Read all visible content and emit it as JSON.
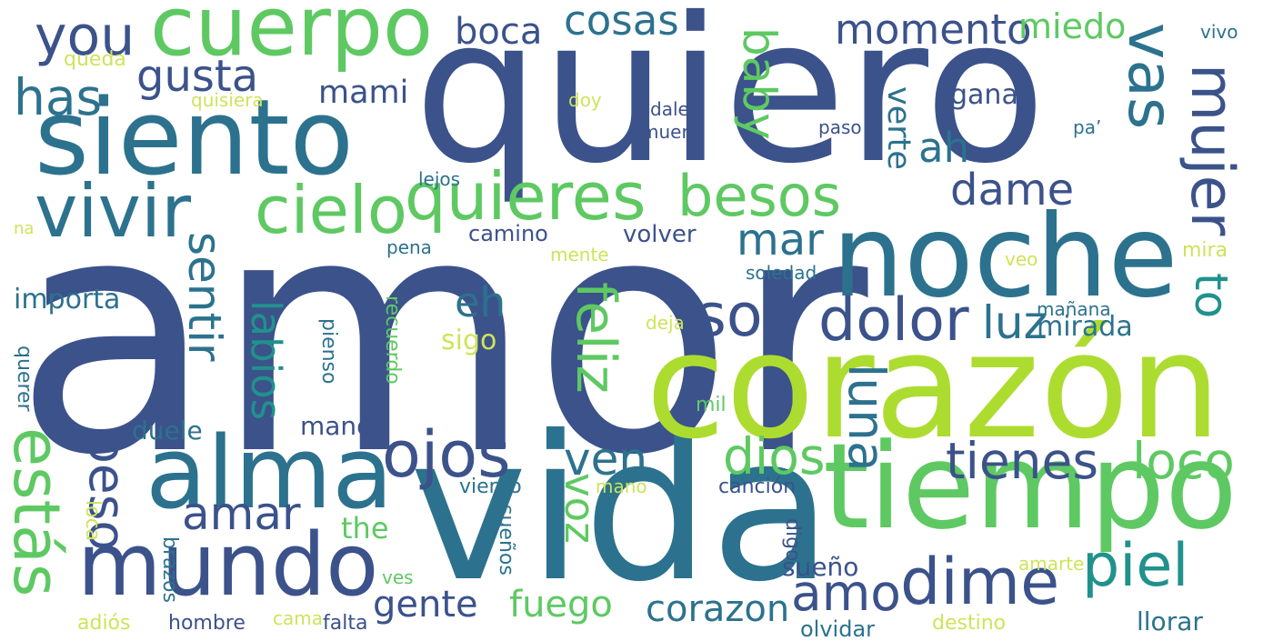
{
  "colors": {
    "background": "#ffffff",
    "palette": [
      "#3b528b",
      "#2c728e",
      "#21918c",
      "#28ae80",
      "#5ec962",
      "#addc30",
      "#cfe35a"
    ]
  },
  "words": [
    {
      "text": "amor",
      "color": "#3b528b"
    },
    {
      "text": "quiero",
      "color": "#3b528b"
    },
    {
      "text": "vida",
      "color": "#2c728e"
    },
    {
      "text": "corazón",
      "color": "#addc30"
    },
    {
      "text": "noche",
      "color": "#2c728e"
    },
    {
      "text": "tiempo",
      "color": "#5ec962"
    },
    {
      "text": "siento",
      "color": "#2c728e"
    },
    {
      "text": "alma",
      "color": "#2c728e"
    },
    {
      "text": "mundo",
      "color": "#3b528b"
    },
    {
      "text": "cuerpo",
      "color": "#5ec962"
    },
    {
      "text": "quieres",
      "color": "#5ec962"
    },
    {
      "text": "vivir",
      "color": "#2c728e"
    },
    {
      "text": "cielo",
      "color": "#5ec962"
    },
    {
      "text": "ojos",
      "color": "#3b528b"
    },
    {
      "text": "sol",
      "color": "#3b528b"
    },
    {
      "text": "dolor",
      "color": "#3b528b"
    },
    {
      "text": "mujer",
      "color": "#3b528b"
    },
    {
      "text": "vas",
      "color": "#2c728e"
    },
    {
      "text": "besos",
      "color": "#5ec962"
    },
    {
      "text": "dime",
      "color": "#3b528b"
    },
    {
      "text": "piel",
      "color": "#21918c"
    },
    {
      "text": "estás",
      "color": "#5ec962"
    },
    {
      "text": "you",
      "color": "#3b528b"
    },
    {
      "text": "gusta",
      "color": "#3b528b"
    },
    {
      "text": "cosas",
      "color": "#2c728e"
    },
    {
      "text": "momento",
      "color": "#3b528b"
    },
    {
      "text": "miedo",
      "color": "#5ec962"
    },
    {
      "text": "boca",
      "color": "#3b528b"
    },
    {
      "text": "baby",
      "color": "#5ec962"
    },
    {
      "text": "has",
      "color": "#2c728e"
    },
    {
      "text": "mami",
      "color": "#3b528b"
    },
    {
      "text": "verte",
      "color": "#2c728e"
    },
    {
      "text": "ganas",
      "color": "#3b528b"
    },
    {
      "text": "ah",
      "color": "#2c728e"
    },
    {
      "text": "dame",
      "color": "#3b528b"
    },
    {
      "text": "mar",
      "color": "#2c728e"
    },
    {
      "text": "luz",
      "color": "#2c728e"
    },
    {
      "text": "to",
      "color": "#21918c"
    },
    {
      "text": "eh",
      "color": "#2c728e"
    },
    {
      "text": "feliz",
      "color": "#5ec962"
    },
    {
      "text": "sentir",
      "color": "#2c728e"
    },
    {
      "text": "labios",
      "color": "#21918c"
    },
    {
      "text": "luna",
      "color": "#2c728e"
    },
    {
      "text": "tienes",
      "color": "#3b528b"
    },
    {
      "text": "loco",
      "color": "#5ec962"
    },
    {
      "text": "dios",
      "color": "#5ec962"
    },
    {
      "text": "ven",
      "color": "#2c728e"
    },
    {
      "text": "beso",
      "color": "#3b528b"
    },
    {
      "text": "amar",
      "color": "#3b528b"
    },
    {
      "text": "voz",
      "color": "#5ec962"
    },
    {
      "text": "amo",
      "color": "#3b528b"
    },
    {
      "text": "the",
      "color": "#5ec962"
    },
    {
      "text": "gente",
      "color": "#3b528b"
    },
    {
      "text": "fuego",
      "color": "#5ec962"
    },
    {
      "text": "corazon",
      "color": "#2c728e"
    },
    {
      "text": "sueño",
      "color": "#3b528b"
    },
    {
      "text": "importa",
      "color": "#2c728e"
    },
    {
      "text": "camino",
      "color": "#3b528b"
    },
    {
      "text": "volver",
      "color": "#3b528b"
    },
    {
      "text": "soledad",
      "color": "#2c728e"
    },
    {
      "text": "mañana",
      "color": "#2c728e"
    },
    {
      "text": "mirada",
      "color": "#2c728e"
    },
    {
      "text": "mira",
      "color": "#cfe35a"
    },
    {
      "text": "veo",
      "color": "#cfe35a"
    },
    {
      "text": "mente",
      "color": "#cfe35a"
    },
    {
      "text": "pena",
      "color": "#2c728e"
    },
    {
      "text": "lejos",
      "color": "#2c728e"
    },
    {
      "text": "na",
      "color": "#cfe35a"
    },
    {
      "text": "queda",
      "color": "#cfe35a"
    },
    {
      "text": "quisiera",
      "color": "#cfe35a"
    },
    {
      "text": "doy",
      "color": "#cfe35a"
    },
    {
      "text": "dale",
      "color": "#3b528b"
    },
    {
      "text": "muero",
      "color": "#3b528b"
    },
    {
      "text": "paso",
      "color": "#3b528b"
    },
    {
      "text": "pa’",
      "color": "#2c728e"
    },
    {
      "text": "vivo",
      "color": "#2c728e"
    },
    {
      "text": "sigo",
      "color": "#cfe35a"
    },
    {
      "text": "deja",
      "color": "#cfe35a"
    },
    {
      "text": "pienso",
      "color": "#2c728e"
    },
    {
      "text": "recuerdo",
      "color": "#5ec962"
    },
    {
      "text": "querer",
      "color": "#2c728e"
    },
    {
      "text": "mil",
      "color": "#5ec962"
    },
    {
      "text": "manos",
      "color": "#3b528b"
    },
    {
      "text": "duele",
      "color": "#2c728e"
    },
    {
      "text": "loca",
      "color": "#cfe35a"
    },
    {
      "text": "viento",
      "color": "#2c728e"
    },
    {
      "text": "mano",
      "color": "#cfe35a"
    },
    {
      "text": "canción",
      "color": "#3b528b"
    },
    {
      "text": "digo",
      "color": "#3b528b"
    },
    {
      "text": "sueños",
      "color": "#2c728e"
    },
    {
      "text": "brazos",
      "color": "#2c728e"
    },
    {
      "text": "ves",
      "color": "#5ec962"
    },
    {
      "text": "amarte",
      "color": "#cfe35a"
    },
    {
      "text": "adiós",
      "color": "#cfe35a"
    },
    {
      "text": "hombre",
      "color": "#3b528b"
    },
    {
      "text": "cama",
      "color": "#cfe35a"
    },
    {
      "text": "falta",
      "color": "#3b528b"
    },
    {
      "text": "olvidar",
      "color": "#2c728e"
    },
    {
      "text": "destino",
      "color": "#cfe35a"
    },
    {
      "text": "llorar",
      "color": "#2c728e"
    }
  ]
}
